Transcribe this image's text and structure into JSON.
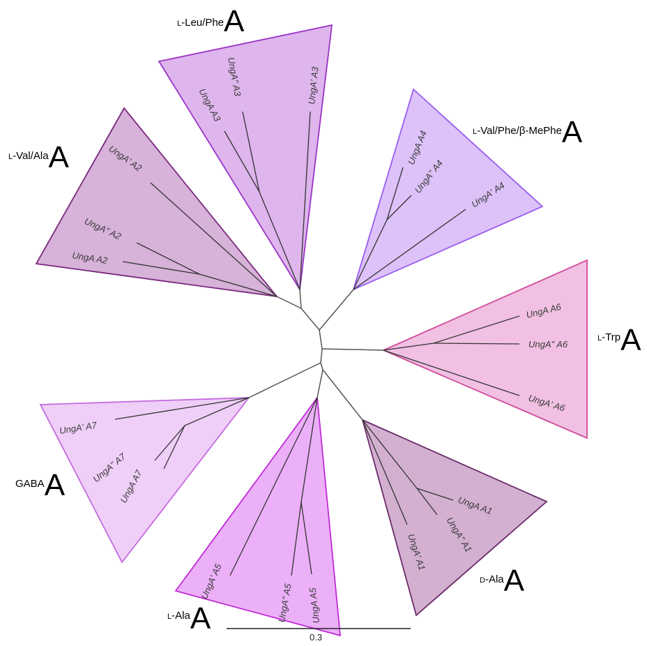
{
  "colors": {
    "clade_D_Ala": {
      "fill": "#d3b0d0",
      "stroke": "#6b2a6b"
    },
    "clade_L_Val_Ala": {
      "fill": "#d7b2d9",
      "stroke": "#7a2a7e"
    },
    "clade_L_Leu_Phe": {
      "fill": "#deb5ec",
      "stroke": "#9a33c8"
    },
    "clade_L_Val_Phe_bMePhe": {
      "fill": "#dcc2f8",
      "stroke": "#9a5cf0"
    },
    "clade_L_Trp": {
      "fill": "#f1c0e2",
      "stroke": "#d04a9a"
    },
    "clade_L_Ala": {
      "fill": "#ebb0f7",
      "stroke": "#c02ad6"
    },
    "clade_GABA": {
      "fill": "#efcff8",
      "stroke": "#c46adf"
    }
  },
  "clades": {
    "leu_phe": {
      "prefix": "L",
      "name": "-Leu/Phe",
      "letter": "A"
    },
    "val_phe": {
      "prefix": "L",
      "name": "-Val/Phe/β-MePhe",
      "letter": "A"
    },
    "val_ala": {
      "prefix": "L",
      "name": "-Val/Ala",
      "letter": "A"
    },
    "trp": {
      "prefix": "L",
      "name": "-Trp",
      "letter": "A"
    },
    "gaba": {
      "prefix": "",
      "name": "GABA",
      "letter": "A"
    },
    "d_ala": {
      "prefix": "D",
      "name": "-Ala",
      "letter": "A"
    },
    "l_ala": {
      "prefix": "L",
      "name": "-Ala",
      "letter": "A"
    }
  },
  "leaves": {
    "a1": "UngA A1",
    "a1pp": "UngA\" A1",
    "a1p": "UngA' A1",
    "a2p": "UngA' A2",
    "a2pp": "UngA\" A2",
    "a2": "UngA A2",
    "a3pp": "UngA\" A3",
    "a3": "UngA A3",
    "a3p": "UngA' A3",
    "a4": "UngA A4",
    "a4pp": "UngA\" A4",
    "a4p": "UngA' A4",
    "a5p": "UngA' A5",
    "a5pp": "UngA\" A5",
    "a5": "UngA A5",
    "a6": "UngA A6",
    "a6pp": "UngA\" A6",
    "a6p": "UngA' A6",
    "a7p": "UngA' A7",
    "a7pp": "UngA\" A7",
    "a7": "UngA A7"
  },
  "scale_bar": {
    "label": "0.3"
  }
}
